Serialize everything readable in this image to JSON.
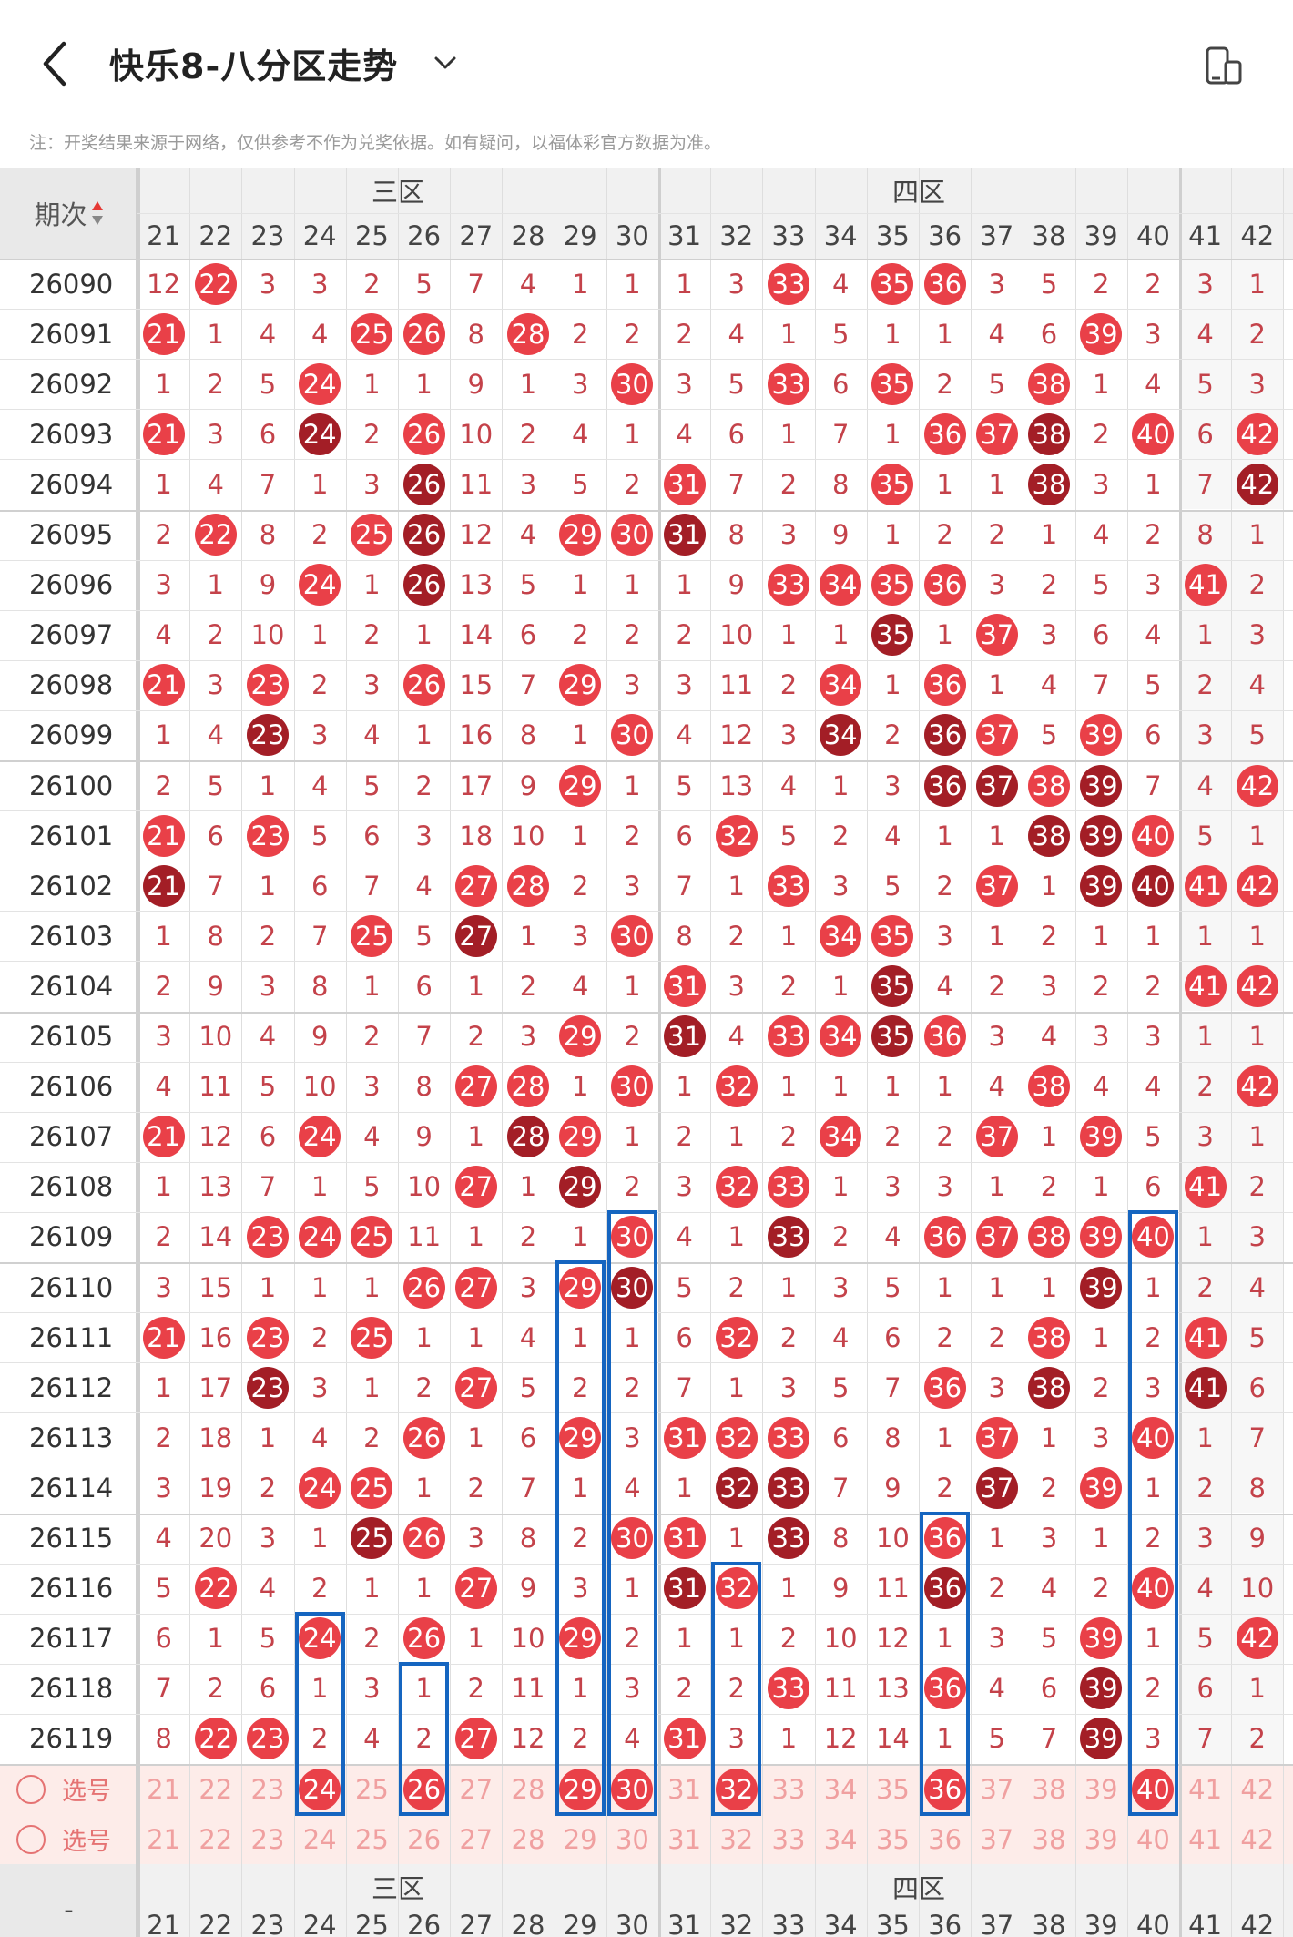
{
  "header": {
    "title": "快乐8-八分区走势",
    "back_icon": "chevron-left-icon",
    "dropdown_icon": "chevron-down-icon",
    "device_icon": "device-toggle-icon"
  },
  "notice": "注：开奖结果来源于网络，仅供参考不作为兑奖依据。如有疑问，以福体彩官方数据为准。",
  "table": {
    "period_header": "期次",
    "sort_icon": "sort-updown-icon",
    "zones": [
      "三区",
      "四区"
    ],
    "columns": [
      "21",
      "22",
      "23",
      "24",
      "25",
      "26",
      "27",
      "28",
      "29",
      "30",
      "31",
      "32",
      "33",
      "34",
      "35",
      "36",
      "37",
      "38",
      "39",
      "40",
      "41",
      "42"
    ],
    "rows": [
      {
        "p": "26090",
        "v": [
          "12",
          "22",
          "3",
          "3",
          "2",
          "5",
          "7",
          "4",
          "1",
          "1",
          "1",
          "3",
          "33",
          "4",
          "35",
          "36",
          "3",
          "5",
          "2",
          "2",
          "3",
          "1"
        ]
      },
      {
        "p": "26091",
        "v": [
          "21",
          "1",
          "4",
          "4",
          "25",
          "26",
          "8",
          "28",
          "2",
          "2",
          "2",
          "4",
          "1",
          "5",
          "1",
          "1",
          "4",
          "6",
          "39",
          "3",
          "4",
          "2"
        ]
      },
      {
        "p": "26092",
        "v": [
          "1",
          "2",
          "5",
          "24",
          "1",
          "1",
          "9",
          "1",
          "3",
          "30",
          "3",
          "5",
          "33",
          "6",
          "35",
          "2",
          "5",
          "38",
          "1",
          "4",
          "5",
          "3"
        ]
      },
      {
        "p": "26093",
        "v": [
          "21",
          "3",
          "6",
          "24",
          "2",
          "26",
          "10",
          "2",
          "4",
          "1",
          "4",
          "6",
          "1",
          "7",
          "1",
          "36",
          "37",
          "38",
          "2",
          "40",
          "6",
          "42"
        ]
      },
      {
        "p": "26094",
        "v": [
          "1",
          "4",
          "7",
          "1",
          "3",
          "26",
          "11",
          "3",
          "5",
          "2",
          "31",
          "7",
          "2",
          "8",
          "35",
          "1",
          "1",
          "38",
          "3",
          "1",
          "7",
          "42"
        ]
      },
      {
        "p": "26095",
        "v": [
          "2",
          "22",
          "8",
          "2",
          "25",
          "26",
          "12",
          "4",
          "29",
          "30",
          "31",
          "8",
          "3",
          "9",
          "1",
          "2",
          "2",
          "1",
          "4",
          "2",
          "8",
          "1"
        ]
      },
      {
        "p": "26096",
        "v": [
          "3",
          "1",
          "9",
          "24",
          "1",
          "26",
          "13",
          "5",
          "1",
          "1",
          "1",
          "9",
          "33",
          "34",
          "35",
          "36",
          "3",
          "2",
          "5",
          "3",
          "41",
          "2"
        ]
      },
      {
        "p": "26097",
        "v": [
          "4",
          "2",
          "10",
          "1",
          "2",
          "1",
          "14",
          "6",
          "2",
          "2",
          "2",
          "10",
          "1",
          "1",
          "35",
          "1",
          "37",
          "3",
          "6",
          "4",
          "1",
          "3"
        ]
      },
      {
        "p": "26098",
        "v": [
          "21",
          "3",
          "23",
          "2",
          "3",
          "26",
          "15",
          "7",
          "29",
          "3",
          "3",
          "11",
          "2",
          "34",
          "1",
          "36",
          "1",
          "4",
          "7",
          "5",
          "2",
          "4"
        ]
      },
      {
        "p": "26099",
        "v": [
          "1",
          "4",
          "23",
          "3",
          "4",
          "1",
          "16",
          "8",
          "1",
          "30",
          "4",
          "12",
          "3",
          "34",
          "2",
          "36",
          "37",
          "5",
          "39",
          "6",
          "3",
          "5"
        ]
      },
      {
        "p": "26100",
        "v": [
          "2",
          "5",
          "1",
          "4",
          "5",
          "2",
          "17",
          "9",
          "29",
          "1",
          "5",
          "13",
          "4",
          "1",
          "3",
          "36",
          "37",
          "38",
          "39",
          "7",
          "4",
          "42"
        ]
      },
      {
        "p": "26101",
        "v": [
          "21",
          "6",
          "23",
          "5",
          "6",
          "3",
          "18",
          "10",
          "1",
          "2",
          "6",
          "32",
          "5",
          "2",
          "4",
          "1",
          "1",
          "38",
          "39",
          "40",
          "5",
          "1"
        ]
      },
      {
        "p": "26102",
        "v": [
          "21",
          "7",
          "1",
          "6",
          "7",
          "4",
          "27",
          "28",
          "2",
          "3",
          "7",
          "1",
          "33",
          "3",
          "5",
          "2",
          "37",
          "1",
          "39",
          "40",
          "41",
          "42"
        ]
      },
      {
        "p": "26103",
        "v": [
          "1",
          "8",
          "2",
          "7",
          "25",
          "5",
          "27",
          "1",
          "3",
          "30",
          "8",
          "2",
          "1",
          "34",
          "35",
          "3",
          "1",
          "2",
          "1",
          "1",
          "1",
          "1"
        ]
      },
      {
        "p": "26104",
        "v": [
          "2",
          "9",
          "3",
          "8",
          "1",
          "6",
          "1",
          "2",
          "4",
          "1",
          "31",
          "3",
          "2",
          "1",
          "35",
          "4",
          "2",
          "3",
          "2",
          "2",
          "41",
          "42"
        ]
      },
      {
        "p": "26105",
        "v": [
          "3",
          "10",
          "4",
          "9",
          "2",
          "7",
          "2",
          "3",
          "29",
          "2",
          "31",
          "4",
          "33",
          "34",
          "35",
          "36",
          "3",
          "4",
          "3",
          "3",
          "1",
          "1"
        ]
      },
      {
        "p": "26106",
        "v": [
          "4",
          "11",
          "5",
          "10",
          "3",
          "8",
          "27",
          "28",
          "1",
          "30",
          "1",
          "32",
          "1",
          "1",
          "1",
          "1",
          "4",
          "38",
          "4",
          "4",
          "2",
          "42"
        ]
      },
      {
        "p": "26107",
        "v": [
          "21",
          "12",
          "6",
          "24",
          "4",
          "9",
          "1",
          "28",
          "29",
          "1",
          "2",
          "1",
          "2",
          "34",
          "2",
          "2",
          "37",
          "1",
          "39",
          "5",
          "3",
          "1"
        ]
      },
      {
        "p": "26108",
        "v": [
          "1",
          "13",
          "7",
          "1",
          "5",
          "10",
          "27",
          "1",
          "29",
          "2",
          "3",
          "32",
          "33",
          "1",
          "3",
          "3",
          "1",
          "2",
          "1",
          "6",
          "41",
          "2"
        ]
      },
      {
        "p": "26109",
        "v": [
          "2",
          "14",
          "23",
          "24",
          "25",
          "11",
          "1",
          "2",
          "1",
          "30",
          "4",
          "1",
          "33",
          "2",
          "4",
          "36",
          "37",
          "38",
          "39",
          "40",
          "1",
          "3"
        ]
      },
      {
        "p": "26110",
        "v": [
          "3",
          "15",
          "1",
          "1",
          "1",
          "26",
          "27",
          "3",
          "29",
          "30",
          "5",
          "2",
          "1",
          "3",
          "5",
          "1",
          "1",
          "1",
          "39",
          "1",
          "2",
          "4"
        ]
      },
      {
        "p": "26111",
        "v": [
          "21",
          "16",
          "23",
          "2",
          "25",
          "1",
          "1",
          "4",
          "1",
          "1",
          "6",
          "32",
          "2",
          "4",
          "6",
          "2",
          "2",
          "38",
          "1",
          "2",
          "41",
          "5"
        ]
      },
      {
        "p": "26112",
        "v": [
          "1",
          "17",
          "23",
          "3",
          "1",
          "2",
          "27",
          "5",
          "2",
          "2",
          "7",
          "1",
          "3",
          "5",
          "7",
          "36",
          "3",
          "38",
          "2",
          "3",
          "41",
          "6"
        ]
      },
      {
        "p": "26113",
        "v": [
          "2",
          "18",
          "1",
          "4",
          "2",
          "26",
          "1",
          "6",
          "29",
          "3",
          "31",
          "32",
          "33",
          "6",
          "8",
          "1",
          "37",
          "1",
          "3",
          "40",
          "1",
          "7"
        ]
      },
      {
        "p": "26114",
        "v": [
          "3",
          "19",
          "2",
          "24",
          "25",
          "1",
          "2",
          "7",
          "1",
          "4",
          "1",
          "32",
          "33",
          "7",
          "9",
          "2",
          "37",
          "2",
          "39",
          "1",
          "2",
          "8"
        ]
      },
      {
        "p": "26115",
        "v": [
          "4",
          "20",
          "3",
          "1",
          "25",
          "26",
          "3",
          "8",
          "2",
          "30",
          "31",
          "1",
          "33",
          "8",
          "10",
          "36",
          "1",
          "3",
          "1",
          "2",
          "3",
          "9"
        ]
      },
      {
        "p": "26116",
        "v": [
          "5",
          "22",
          "4",
          "2",
          "1",
          "1",
          "27",
          "9",
          "3",
          "1",
          "31",
          "32",
          "1",
          "9",
          "11",
          "36",
          "2",
          "4",
          "2",
          "40",
          "4",
          "10"
        ]
      },
      {
        "p": "26117",
        "v": [
          "6",
          "1",
          "5",
          "24",
          "2",
          "26",
          "1",
          "10",
          "29",
          "2",
          "1",
          "1",
          "2",
          "10",
          "12",
          "1",
          "3",
          "5",
          "39",
          "1",
          "5",
          "42"
        ]
      },
      {
        "p": "26118",
        "v": [
          "7",
          "2",
          "6",
          "1",
          "3",
          "1",
          "2",
          "11",
          "1",
          "3",
          "2",
          "2",
          "33",
          "11",
          "13",
          "36",
          "4",
          "6",
          "39",
          "2",
          "6",
          "1"
        ]
      },
      {
        "p": "26119",
        "v": [
          "8",
          "22",
          "23",
          "2",
          "4",
          "2",
          "27",
          "12",
          "2",
          "4",
          "31",
          "3",
          "1",
          "12",
          "14",
          "1",
          "5",
          "7",
          "39",
          "3",
          "7",
          "2"
        ]
      }
    ],
    "select_label": "选号",
    "radio_icon": "radio-circle-icon",
    "prediction_row": [
      "21",
      "22",
      "23",
      "24",
      "25",
      "26",
      "27",
      "28",
      "29",
      "30",
      "31",
      "32",
      "33",
      "34",
      "35",
      "36",
      "37",
      "38",
      "39",
      "40",
      "41",
      "42"
    ],
    "prediction_hits": [
      "24",
      "26",
      "29",
      "30",
      "32",
      "36",
      "40"
    ],
    "footer_dash": "-",
    "colors": {
      "ball_red": "#e94048",
      "ball_dark": "#a31e26",
      "miss_text": "#c4424a",
      "highlight_box": "#1565c0",
      "select_row_bg": "#fdece9"
    }
  }
}
